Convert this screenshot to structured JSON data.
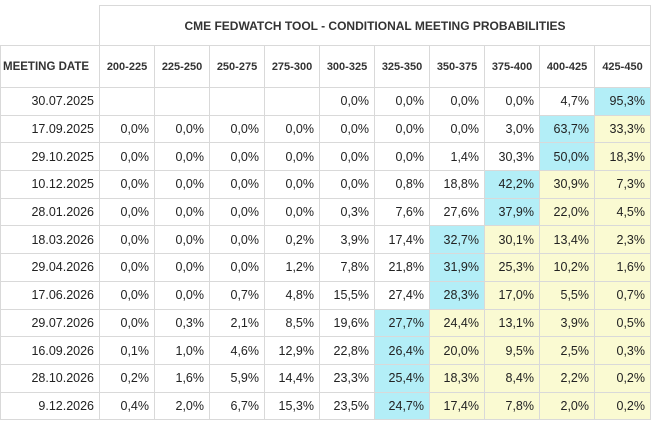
{
  "title": "CME FEDWATCH TOOL - CONDITIONAL MEETING PROBABILITIES",
  "date_header": "MEETING DATE",
  "columns": [
    "200-225",
    "225-250",
    "250-275",
    "275-300",
    "300-325",
    "325-350",
    "350-375",
    "375-400",
    "400-425",
    "425-450"
  ],
  "rows": [
    {
      "date": "30.07.2025",
      "values": [
        "",
        "",
        "",
        "",
        "0,0%",
        "0,0%",
        "0,0%",
        "0,0%",
        "4,7%",
        "95,3%"
      ],
      "max_col": 9,
      "hi_cols": []
    },
    {
      "date": "17.09.2025",
      "values": [
        "0,0%",
        "0,0%",
        "0,0%",
        "0,0%",
        "0,0%",
        "0,0%",
        "0,0%",
        "3,0%",
        "63,7%",
        "33,3%"
      ],
      "max_col": 8,
      "hi_cols": [
        9
      ]
    },
    {
      "date": "29.10.2025",
      "values": [
        "0,0%",
        "0,0%",
        "0,0%",
        "0,0%",
        "0,0%",
        "0,0%",
        "1,4%",
        "30,3%",
        "50,0%",
        "18,3%"
      ],
      "max_col": 8,
      "hi_cols": [
        9
      ]
    },
    {
      "date": "10.12.2025",
      "values": [
        "0,0%",
        "0,0%",
        "0,0%",
        "0,0%",
        "0,0%",
        "0,8%",
        "18,8%",
        "42,2%",
        "30,9%",
        "7,3%"
      ],
      "max_col": 7,
      "hi_cols": [
        8,
        9
      ]
    },
    {
      "date": "28.01.2026",
      "values": [
        "0,0%",
        "0,0%",
        "0,0%",
        "0,0%",
        "0,3%",
        "7,6%",
        "27,6%",
        "37,9%",
        "22,0%",
        "4,5%"
      ],
      "max_col": 7,
      "hi_cols": [
        8,
        9
      ]
    },
    {
      "date": "18.03.2026",
      "values": [
        "0,0%",
        "0,0%",
        "0,0%",
        "0,2%",
        "3,9%",
        "17,4%",
        "32,7%",
        "30,1%",
        "13,4%",
        "2,3%"
      ],
      "max_col": 6,
      "hi_cols": [
        7,
        8,
        9
      ]
    },
    {
      "date": "29.04.2026",
      "values": [
        "0,0%",
        "0,0%",
        "0,0%",
        "1,2%",
        "7,8%",
        "21,8%",
        "31,9%",
        "25,3%",
        "10,2%",
        "1,6%"
      ],
      "max_col": 6,
      "hi_cols": [
        7,
        8,
        9
      ]
    },
    {
      "date": "17.06.2026",
      "values": [
        "0,0%",
        "0,0%",
        "0,7%",
        "4,8%",
        "15,5%",
        "27,4%",
        "28,3%",
        "17,0%",
        "5,5%",
        "0,7%"
      ],
      "max_col": 6,
      "hi_cols": [
        7,
        8,
        9
      ]
    },
    {
      "date": "29.07.2026",
      "values": [
        "0,0%",
        "0,3%",
        "2,1%",
        "8,5%",
        "19,6%",
        "27,7%",
        "24,4%",
        "13,1%",
        "3,9%",
        "0,5%"
      ],
      "max_col": 5,
      "hi_cols": [
        6,
        7,
        8,
        9
      ]
    },
    {
      "date": "16.09.2026",
      "values": [
        "0,1%",
        "1,0%",
        "4,6%",
        "12,9%",
        "22,8%",
        "26,4%",
        "20,0%",
        "9,5%",
        "2,5%",
        "0,3%"
      ],
      "max_col": 5,
      "hi_cols": [
        6,
        7,
        8,
        9
      ]
    },
    {
      "date": "28.10.2026",
      "values": [
        "0,2%",
        "1,6%",
        "5,9%",
        "14,4%",
        "23,3%",
        "25,4%",
        "18,3%",
        "8,4%",
        "2,2%",
        "0,2%"
      ],
      "max_col": 5,
      "hi_cols": [
        6,
        7,
        8,
        9
      ]
    },
    {
      "date": "9.12.2026",
      "values": [
        "0,4%",
        "2,0%",
        "6,7%",
        "15,3%",
        "23,5%",
        "24,7%",
        "17,4%",
        "7,8%",
        "2,0%",
        "0,2%"
      ],
      "max_col": 5,
      "hi_cols": [
        6,
        7,
        8,
        9
      ]
    }
  ],
  "colors": {
    "max_cell": "#b3eef7",
    "higher_cell": "#fafad2",
    "grid": "#d9d9d9"
  }
}
